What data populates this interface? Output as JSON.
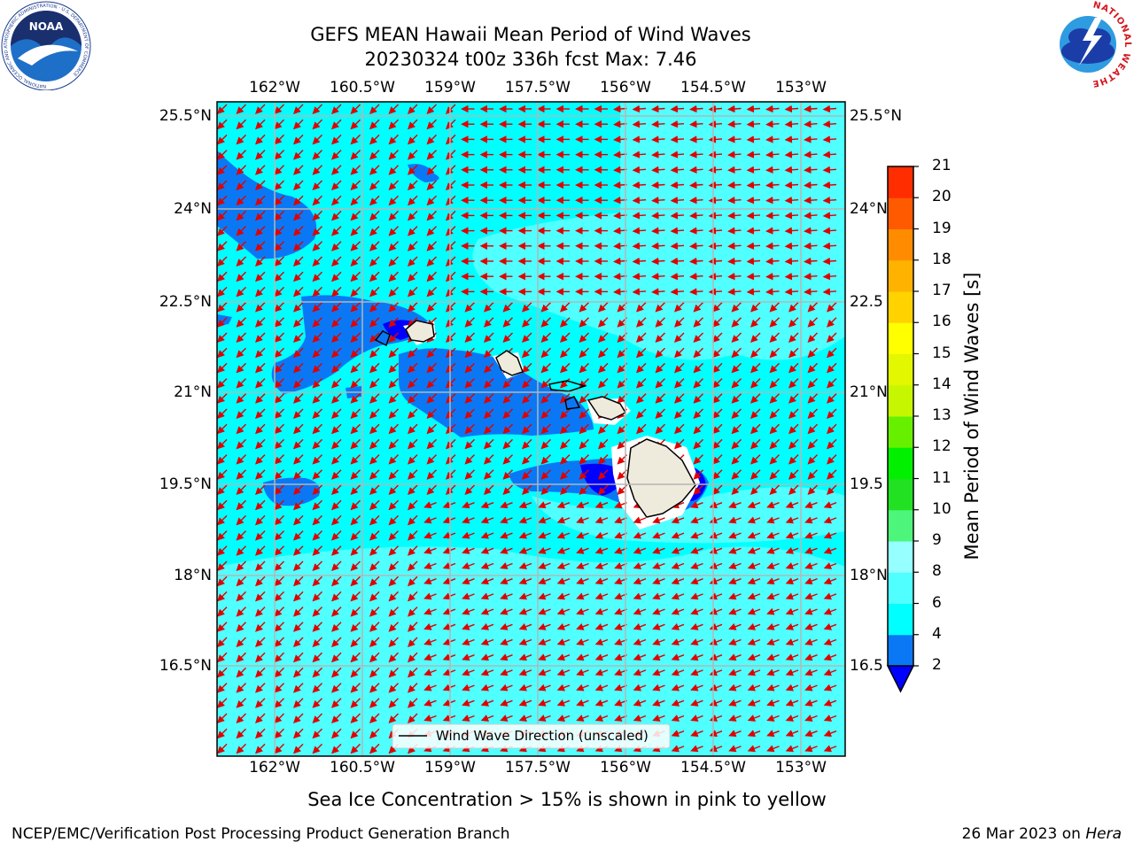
{
  "header": {
    "title_line1": "GEFS MEAN Hawaii Mean Period of Wind Waves",
    "title_line2": "20230324 t00z 336h fcst   Max: 7.46"
  },
  "logos": {
    "left_name": "NOAA",
    "left_ring_text": "NATIONAL OCEANIC AND ATMOSPHERIC ADMINISTRATION · U.S. DEPARTMENT OF COMMERCE",
    "right_ring_text": "NATIONAL WEATHER SERVICE"
  },
  "map": {
    "lon_labels": [
      "162°W",
      "160.5°W",
      "159°W",
      "157.5°W",
      "156°W",
      "154.5°W",
      "153°W"
    ],
    "lat_labels_left": [
      "25.5°N",
      "24°N",
      "22.5°N",
      "21°N",
      "19.5°N",
      "18°N",
      "16.5°N"
    ],
    "lat_labels_right": [
      "25.5°N",
      "24°N",
      "22.5",
      "21°N",
      "19.5",
      "18°N",
      "16.5"
    ],
    "legend_label": "Wind Wave Direction (unscaled)",
    "vector_color": "#e00000",
    "coastline_color": "#000000",
    "land_color": "#efebdc"
  },
  "colorbar": {
    "label": "Mean Period of Wind Waves [s]",
    "ticks": [
      "2",
      "4",
      "6",
      "8",
      "9",
      "10",
      "11",
      "12",
      "13",
      "14",
      "15",
      "16",
      "17",
      "18",
      "19",
      "20",
      "21"
    ],
    "levels": [
      2,
      4,
      6,
      8,
      9,
      10,
      11,
      12,
      13,
      14,
      15,
      16,
      17,
      18,
      19,
      20,
      21
    ],
    "colors": [
      "#0a78f5",
      "#00ffff",
      "#50ffff",
      "#96ffff",
      "#4df57a",
      "#22e022",
      "#00f000",
      "#66f000",
      "#c6f700",
      "#e2f700",
      "#ffff00",
      "#ffd200",
      "#ffb200",
      "#ff8c00",
      "#ff5a00",
      "#ff2d00",
      "#ff0000"
    ],
    "under_color": "#0000ff"
  },
  "notes": {
    "sea_ice": "Sea Ice Concentration > 15% is shown in pink to yellow"
  },
  "footer": {
    "left": "NCEP/EMC/Verification Post Processing Product Generation Branch",
    "right_date": "26 Mar 2023 on ",
    "right_host": "Hera"
  }
}
